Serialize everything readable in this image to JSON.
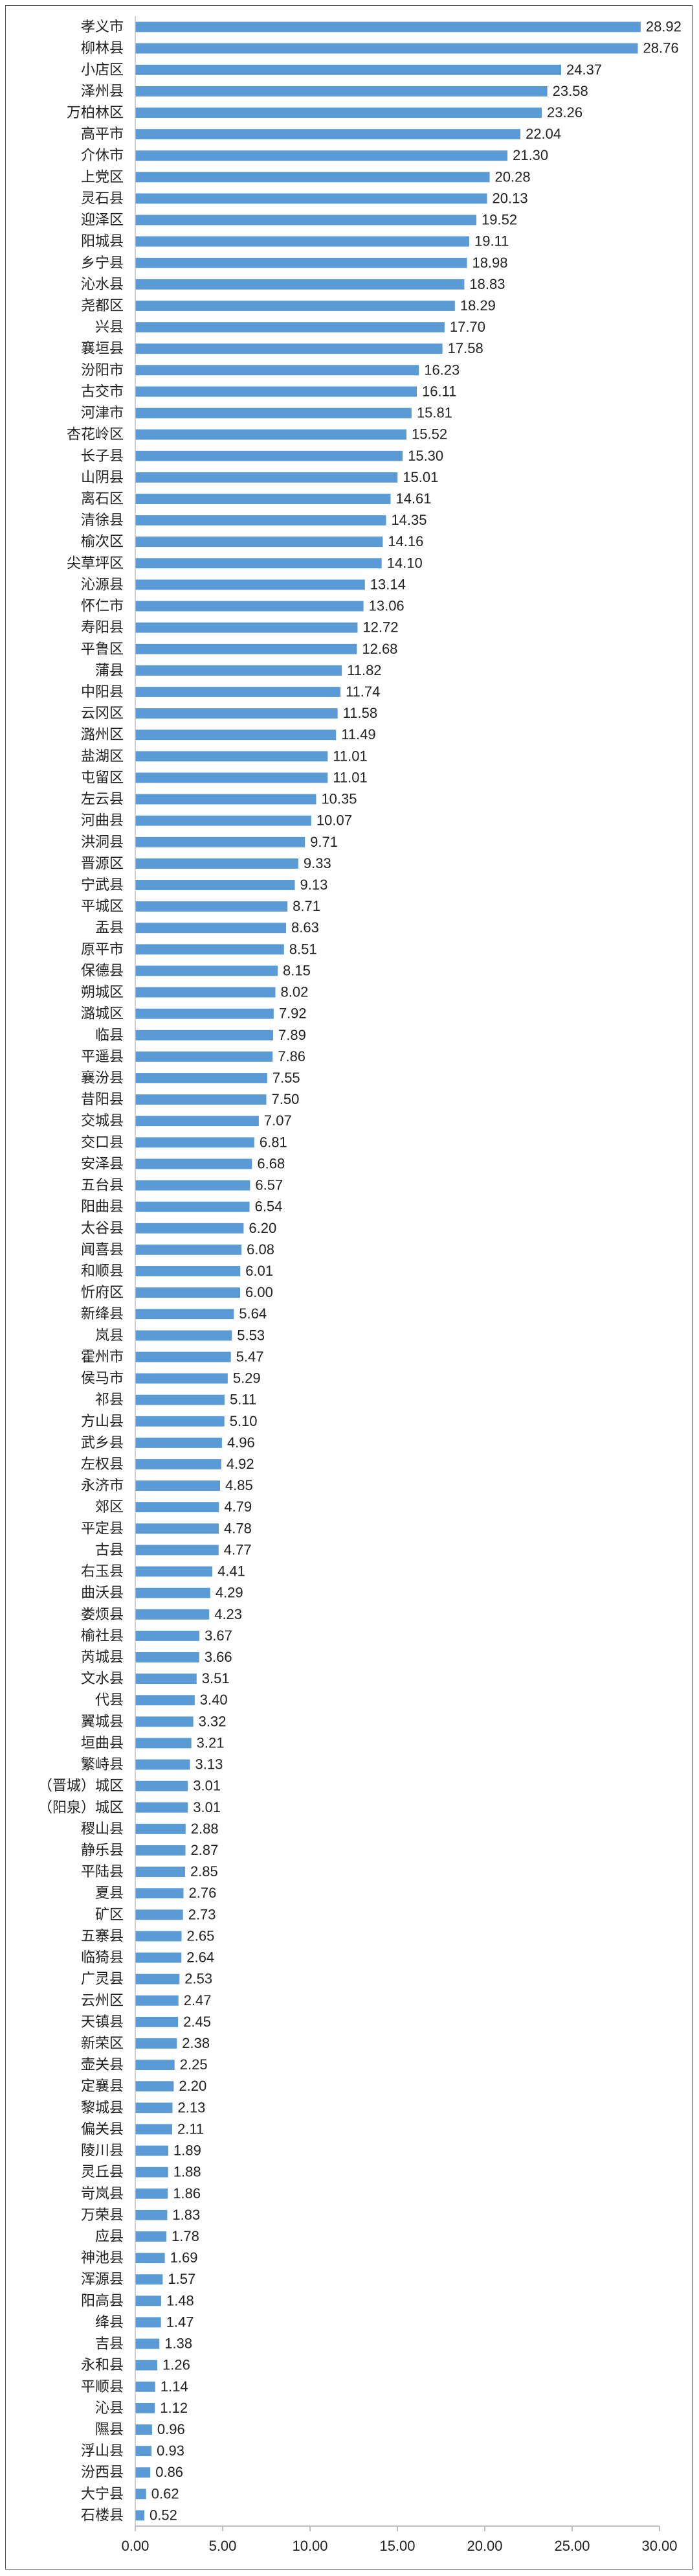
{
  "chart_data": {
    "type": "bar",
    "orientation": "horizontal",
    "bar_color": "#5b9bd5",
    "axis_color": "#bfbfbf",
    "xlim": [
      0,
      30
    ],
    "xticks": [
      "0.00",
      "5.00",
      "10.00",
      "15.00",
      "20.00",
      "25.00",
      "30.00"
    ],
    "xtick_values": [
      0,
      5,
      10,
      15,
      20,
      25,
      30
    ],
    "categories": [
      "孝义市",
      "柳林县",
      "小店区",
      "泽州县",
      "万柏林区",
      "高平市",
      "介休市",
      "上党区",
      "灵石县",
      "迎泽区",
      "阳城县",
      "乡宁县",
      "沁水县",
      "尧都区",
      "兴县",
      "襄垣县",
      "汾阳市",
      "古交市",
      "河津市",
      "杏花岭区",
      "长子县",
      "山阴县",
      "离石区",
      "清徐县",
      "榆次区",
      "尖草坪区",
      "沁源县",
      "怀仁市",
      "寿阳县",
      "平鲁区",
      "蒲县",
      "中阳县",
      "云冈区",
      "潞州区",
      "盐湖区",
      "屯留区",
      "左云县",
      "河曲县",
      "洪洞县",
      "晋源区",
      "宁武县",
      "平城区",
      "盂县",
      "原平市",
      "保德县",
      "朔城区",
      "潞城区",
      "临县",
      "平遥县",
      "襄汾县",
      "昔阳县",
      "交城县",
      "交口县",
      "安泽县",
      "五台县",
      "阳曲县",
      "太谷县",
      "闻喜县",
      "和顺县",
      "忻府区",
      "新绛县",
      "岚县",
      "霍州市",
      "侯马市",
      "祁县",
      "方山县",
      "武乡县",
      "左权县",
      "永济市",
      "郊区",
      "平定县",
      "古县",
      "右玉县",
      "曲沃县",
      "娄烦县",
      "榆社县",
      "芮城县",
      "文水县",
      "代县",
      "翼城县",
      "垣曲县",
      "繁峙县",
      "（晋城）城区",
      "（阳泉）城区",
      "稷山县",
      "静乐县",
      "平陆县",
      "夏县",
      "矿区",
      "五寨县",
      "临猗县",
      "广灵县",
      "云州区",
      "天镇县",
      "新荣区",
      "壶关县",
      "定襄县",
      "黎城县",
      "偏关县",
      "陵川县",
      "灵丘县",
      "岢岚县",
      "万荣县",
      "应县",
      "神池县",
      "浑源县",
      "阳高县",
      "绛县",
      "吉县",
      "永和县",
      "平顺县",
      "沁县",
      "隰县",
      "浮山县",
      "汾西县",
      "大宁县",
      "石楼县"
    ],
    "values": [
      28.92,
      28.76,
      24.37,
      23.58,
      23.26,
      22.04,
      21.3,
      20.28,
      20.13,
      19.52,
      19.11,
      18.98,
      18.83,
      18.29,
      17.7,
      17.58,
      16.23,
      16.11,
      15.81,
      15.52,
      15.3,
      15.01,
      14.61,
      14.35,
      14.16,
      14.1,
      13.14,
      13.06,
      12.72,
      12.68,
      11.82,
      11.74,
      11.58,
      11.49,
      11.01,
      11.01,
      10.35,
      10.07,
      9.71,
      9.33,
      9.13,
      8.71,
      8.63,
      8.51,
      8.15,
      8.02,
      7.92,
      7.89,
      7.86,
      7.55,
      7.5,
      7.07,
      6.81,
      6.68,
      6.57,
      6.54,
      6.2,
      6.08,
      6.01,
      6.0,
      5.64,
      5.53,
      5.47,
      5.29,
      5.11,
      5.1,
      4.96,
      4.92,
      4.85,
      4.79,
      4.78,
      4.77,
      4.41,
      4.29,
      4.23,
      3.67,
      3.66,
      3.51,
      3.4,
      3.32,
      3.21,
      3.13,
      3.01,
      3.01,
      2.88,
      2.87,
      2.85,
      2.76,
      2.73,
      2.65,
      2.64,
      2.53,
      2.47,
      2.45,
      2.38,
      2.25,
      2.2,
      2.13,
      2.11,
      1.89,
      1.88,
      1.86,
      1.83,
      1.78,
      1.69,
      1.57,
      1.48,
      1.47,
      1.38,
      1.26,
      1.14,
      1.12,
      0.96,
      0.93,
      0.86,
      0.62,
      0.52
    ],
    "value_labels": [
      "28.92",
      "28.76",
      "24.37",
      "23.58",
      "23.26",
      "22.04",
      "21.30",
      "20.28",
      "20.13",
      "19.52",
      "19.11",
      "18.98",
      "18.83",
      "18.29",
      "17.70",
      "17.58",
      "16.23",
      "16.11",
      "15.81",
      "15.52",
      "15.30",
      "15.01",
      "14.61",
      "14.35",
      "14.16",
      "14.10",
      "13.14",
      "13.06",
      "12.72",
      "12.68",
      "11.82",
      "11.74",
      "11.58",
      "11.49",
      "11.01",
      "11.01",
      "10.35",
      "10.07",
      "9.71",
      "9.33",
      "9.13",
      "8.71",
      "8.63",
      "8.51",
      "8.15",
      "8.02",
      "7.92",
      "7.89",
      "7.86",
      "7.55",
      "7.50",
      "7.07",
      "6.81",
      "6.68",
      "6.57",
      "6.54",
      "6.20",
      "6.08",
      "6.01",
      "6.00",
      "5.64",
      "5.53",
      "5.47",
      "5.29",
      "5.11",
      "5.10",
      "4.96",
      "4.92",
      "4.85",
      "4.79",
      "4.78",
      "4.77",
      "4.41",
      "4.29",
      "4.23",
      "3.67",
      "3.66",
      "3.51",
      "3.40",
      "3.32",
      "3.21",
      "3.13",
      "3.01",
      "3.01",
      "2.88",
      "2.87",
      "2.85",
      "2.76",
      "2.73",
      "2.65",
      "2.64",
      "2.53",
      "2.47",
      "2.45",
      "2.38",
      "2.25",
      "2.20",
      "2.13",
      "2.11",
      "1.89",
      "1.88",
      "1.86",
      "1.83",
      "1.78",
      "1.69",
      "1.57",
      "1.48",
      "1.47",
      "1.38",
      "1.26",
      "1.14",
      "1.12",
      "0.96",
      "0.93",
      "0.86",
      "0.62",
      "0.52"
    ],
    "grid": false,
    "legend": "none",
    "title": "",
    "xlabel": "",
    "ylabel": ""
  }
}
